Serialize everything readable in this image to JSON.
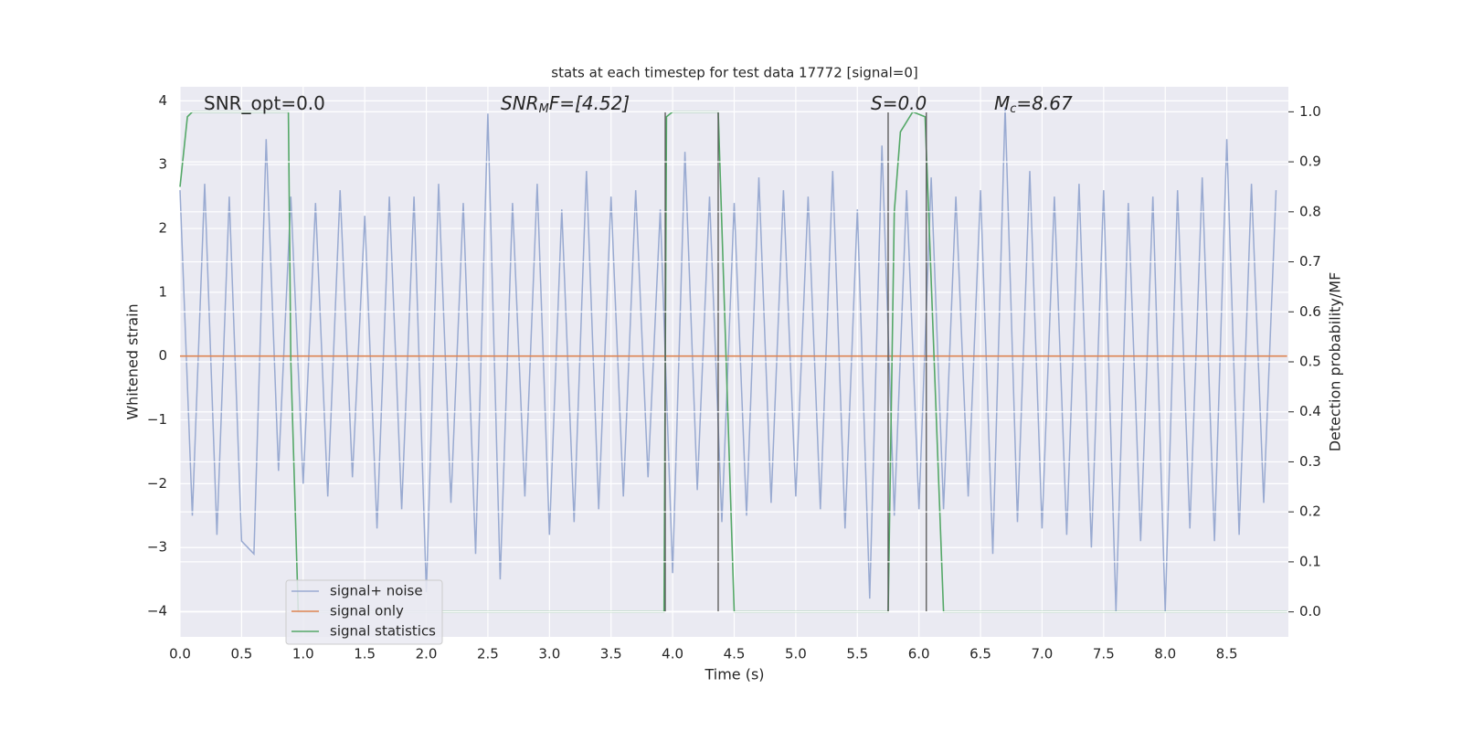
{
  "chart_data": {
    "type": "line",
    "title": "stats at each timestep for test data 17772 [signal=0]",
    "xlabel": "Time (s)",
    "ylabel": "Whitened strain",
    "y2label": "Detection probability/MF",
    "xlim": [
      0,
      9.0
    ],
    "ylim": [
      -4.4,
      4.22
    ],
    "y2lim": [
      -0.05,
      1.05
    ],
    "xticks": [
      {
        "value": 0,
        "label": "0.0"
      },
      0.5,
      {
        "value": 1,
        "label": "1.0"
      },
      1.5,
      {
        "value": 2,
        "label": "2.0"
      },
      2.5,
      {
        "value": 3,
        "label": "3.0"
      },
      3.5,
      {
        "value": 4,
        "label": "4.0"
      },
      4.5,
      {
        "value": 5,
        "label": "5.0"
      },
      5.5,
      {
        "value": 6,
        "label": "6.0"
      },
      6.5,
      {
        "value": 7,
        "label": "7.0"
      },
      7.5,
      {
        "value": 8,
        "label": "8.0"
      },
      8.5
    ],
    "yticks": [
      {
        "value": -4,
        "label": "−4"
      },
      {
        "value": -3,
        "label": "−3"
      },
      {
        "value": -2,
        "label": "−2"
      },
      {
        "value": -1,
        "label": "−1"
      },
      0,
      1,
      2,
      3,
      4
    ],
    "y2ticks": [
      {
        "value": 0,
        "label": "0.0"
      },
      0.1,
      0.2,
      0.3,
      0.4,
      0.5,
      0.6,
      0.7,
      0.8,
      0.9,
      {
        "value": 1,
        "label": "1.0"
      }
    ],
    "grid": true,
    "series": [
      {
        "name": "signal+ noise",
        "color": "#99aad1",
        "x": [
          0,
          0.1,
          0.2,
          0.3,
          0.4,
          0.5,
          0.6,
          0.7,
          0.8,
          0.9,
          1,
          1.1,
          1.2,
          1.3,
          1.4,
          1.5,
          1.6,
          1.7,
          1.8,
          1.9,
          2,
          2.1,
          2.2,
          2.3,
          2.4,
          2.5,
          2.6,
          2.7,
          2.8,
          2.9,
          3,
          3.1,
          3.2,
          3.3,
          3.4,
          3.5,
          3.6,
          3.7,
          3.8,
          3.9,
          4,
          4.1,
          4.2,
          4.3,
          4.4,
          4.5,
          4.6,
          4.7,
          4.8,
          4.9,
          5,
          5.1,
          5.2,
          5.3,
          5.4,
          5.5,
          5.6,
          5.7,
          5.8,
          5.9,
          6,
          6.1,
          6.2,
          6.3,
          6.4,
          6.5,
          6.6,
          6.7,
          6.8,
          6.9,
          7,
          7.1,
          7.2,
          7.3,
          7.4,
          7.5,
          7.6,
          7.7,
          7.8,
          7.9,
          8,
          8.1,
          8.2,
          8.3,
          8.4,
          8.5,
          8.6,
          8.7,
          8.8,
          8.9
        ],
        "values": [
          2.6,
          -2.5,
          2.7,
          -2.8,
          2.5,
          -2.9,
          -3.1,
          3.4,
          -1.8,
          2.5,
          -2.0,
          2.4,
          -2.2,
          2.6,
          -1.9,
          2.2,
          -2.7,
          2.5,
          -2.4,
          2.5,
          -3.7,
          2.7,
          -2.3,
          2.4,
          -3.1,
          3.8,
          -3.5,
          2.4,
          -2.2,
          2.7,
          -2.8,
          2.3,
          -2.6,
          2.9,
          -2.4,
          2.5,
          -2.2,
          2.6,
          -1.9,
          2.3,
          -3.4,
          3.2,
          -2.1,
          2.5,
          -2.6,
          2.4,
          -2.5,
          2.8,
          -2.3,
          2.6,
          -2.2,
          2.5,
          -2.4,
          2.9,
          -2.7,
          2.3,
          -3.8,
          3.3,
          -2.5,
          2.6,
          -2.4,
          2.8,
          -2.4,
          2.5,
          -2.2,
          2.6,
          -3.1,
          3.9,
          -2.6,
          2.9,
          -2.7,
          2.5,
          -2.8,
          2.7,
          -3.0,
          2.6,
          -4.0,
          2.4,
          -2.9,
          2.5,
          -4.0,
          2.6,
          -2.7,
          2.8,
          -2.9,
          3.4,
          -2.8,
          2.7,
          -2.3,
          2.6
        ]
      },
      {
        "name": "signal only",
        "color": "#dd8452",
        "x": [
          0,
          8.99
        ],
        "values": [
          0,
          0
        ]
      },
      {
        "name": "signal statistics",
        "color": "#55a868",
        "axis": "y2",
        "x": [
          0,
          0.06,
          0.1,
          0.88,
          0.9,
          0.96,
          3.93,
          3.95,
          4.0,
          4.37,
          4.5,
          5.4,
          5.5,
          5.75,
          5.8,
          5.85,
          5.95,
          6.05,
          6.2,
          8.99
        ],
        "values": [
          0.85,
          0.99,
          1.0,
          1.0,
          0.5,
          0.0,
          0.0,
          0.99,
          1.0,
          1.0,
          0.0,
          0.0,
          0.0,
          0.0,
          0.8,
          0.96,
          1.0,
          0.99,
          0.0,
          0.0
        ]
      }
    ],
    "vlines": {
      "x": [
        3.94,
        4.37,
        5.75,
        6.06
      ],
      "ymin": 0,
      "ymax": 1,
      "axis": "y2",
      "color": "#555555"
    },
    "annotations": [
      {
        "text": "SNR_opt=0.0",
        "italic": false
      },
      {
        "text": "SNR",
        "sub": "M",
        "rest": "F=[4.52]",
        "italic": true
      },
      {
        "text": "S",
        "rest": "=0.0",
        "italic": true
      },
      {
        "text": "M",
        "sub": "c",
        "rest": "=8.67",
        "italic": true
      }
    ],
    "legend": "lower left"
  }
}
